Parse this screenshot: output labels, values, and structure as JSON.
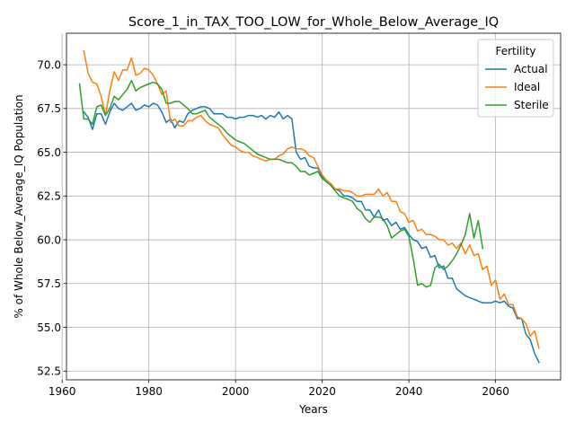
{
  "chart_data": {
    "type": "line",
    "title": "Score_1_in_TAX_TOO_LOW_for_Whole_Below_Average_IQ",
    "xlabel": "Years",
    "ylabel": "% of Whole Below_Average_IQ Population",
    "xlim": [
      1961,
      2075
    ],
    "ylim": [
      52.0,
      71.8
    ],
    "xticks": [
      1960,
      1980,
      2000,
      2020,
      2040,
      2060
    ],
    "yticks": [
      52.5,
      55.0,
      57.5,
      60.0,
      62.5,
      65.0,
      67.5,
      70.0
    ],
    "xtick_labels": [
      "1960",
      "1980",
      "2000",
      "2020",
      "2040",
      "2060"
    ],
    "ytick_labels": [
      "52.5",
      "55.0",
      "57.5",
      "60.0",
      "62.5",
      "65.0",
      "67.5",
      "70.0"
    ],
    "grid": true,
    "legend": {
      "title": "Fertility",
      "placement": "top-right"
    },
    "series": [
      {
        "name": "Actual",
        "color": "#1f77b4",
        "points": [
          [
            1965,
            67.3
          ],
          [
            1966,
            67.0
          ],
          [
            1967,
            66.3
          ],
          [
            1968,
            67.2
          ],
          [
            1969,
            67.2
          ],
          [
            1970,
            66.6
          ],
          [
            1971,
            67.3
          ],
          [
            1972,
            67.8
          ],
          [
            1973,
            67.5
          ],
          [
            1974,
            67.4
          ],
          [
            1975,
            67.6
          ],
          [
            1976,
            67.8
          ],
          [
            1977,
            67.4
          ],
          [
            1978,
            67.5
          ],
          [
            1979,
            67.7
          ],
          [
            1980,
            67.6
          ],
          [
            1981,
            67.8
          ],
          [
            1982,
            67.7
          ],
          [
            1983,
            67.3
          ],
          [
            1984,
            66.7
          ],
          [
            1985,
            66.9
          ],
          [
            1986,
            66.4
          ],
          [
            1987,
            66.8
          ],
          [
            1988,
            66.7
          ],
          [
            1989,
            67.2
          ],
          [
            1990,
            67.4
          ],
          [
            1991,
            67.5
          ],
          [
            1992,
            67.6
          ],
          [
            1993,
            67.6
          ],
          [
            1994,
            67.5
          ],
          [
            1995,
            67.2
          ],
          [
            1996,
            67.2
          ],
          [
            1997,
            67.2
          ],
          [
            1998,
            67.0
          ],
          [
            1999,
            67.0
          ],
          [
            2000,
            66.9
          ],
          [
            2001,
            67.0
          ],
          [
            2002,
            67.0
          ],
          [
            2003,
            67.1
          ],
          [
            2004,
            67.1
          ],
          [
            2005,
            67.0
          ],
          [
            2006,
            67.1
          ],
          [
            2007,
            66.9
          ],
          [
            2008,
            67.1
          ],
          [
            2009,
            67.0
          ],
          [
            2010,
            67.3
          ],
          [
            2011,
            66.9
          ],
          [
            2012,
            67.1
          ],
          [
            2013,
            66.9
          ],
          [
            2014,
            65.0
          ],
          [
            2015,
            64.6
          ],
          [
            2016,
            64.7
          ],
          [
            2017,
            64.2
          ],
          [
            2018,
            64.1
          ],
          [
            2019,
            64.1
          ],
          [
            2020,
            63.6
          ],
          [
            2021,
            63.4
          ],
          [
            2022,
            63.2
          ],
          [
            2023,
            62.9
          ],
          [
            2024,
            62.8
          ],
          [
            2025,
            62.5
          ],
          [
            2026,
            62.5
          ],
          [
            2027,
            62.4
          ],
          [
            2028,
            62.2
          ],
          [
            2029,
            62.2
          ],
          [
            2030,
            61.7
          ],
          [
            2031,
            61.7
          ],
          [
            2032,
            61.3
          ],
          [
            2033,
            61.7
          ],
          [
            2034,
            61.1
          ],
          [
            2035,
            61.2
          ],
          [
            2036,
            60.8
          ],
          [
            2037,
            61.0
          ],
          [
            2038,
            60.6
          ],
          [
            2039,
            60.7
          ],
          [
            2040,
            60.3
          ],
          [
            2041,
            60.0
          ],
          [
            2042,
            59.9
          ],
          [
            2043,
            59.5
          ],
          [
            2044,
            59.6
          ],
          [
            2045,
            59.0
          ],
          [
            2046,
            59.1
          ],
          [
            2047,
            58.4
          ],
          [
            2048,
            58.5
          ],
          [
            2049,
            57.8
          ],
          [
            2050,
            57.8
          ],
          [
            2051,
            57.2
          ],
          [
            2052,
            57.0
          ],
          [
            2053,
            56.8
          ],
          [
            2054,
            56.7
          ],
          [
            2055,
            56.6
          ],
          [
            2056,
            56.5
          ],
          [
            2057,
            56.4
          ],
          [
            2058,
            56.4
          ],
          [
            2059,
            56.4
          ],
          [
            2060,
            56.5
          ],
          [
            2061,
            56.4
          ],
          [
            2062,
            56.5
          ],
          [
            2063,
            56.2
          ],
          [
            2064,
            56.1
          ],
          [
            2065,
            55.5
          ],
          [
            2066,
            55.5
          ],
          [
            2067,
            54.6
          ],
          [
            2068,
            54.3
          ],
          [
            2069,
            53.5
          ],
          [
            2070,
            53.0
          ]
        ]
      },
      {
        "name": "Ideal",
        "color": "#ff7f0e",
        "points": [
          [
            1965,
            70.8
          ],
          [
            1966,
            69.5
          ],
          [
            1967,
            69.0
          ],
          [
            1968,
            68.9
          ],
          [
            1969,
            68.2
          ],
          [
            1970,
            67.1
          ],
          [
            1971,
            68.5
          ],
          [
            1972,
            69.6
          ],
          [
            1973,
            69.1
          ],
          [
            1974,
            69.7
          ],
          [
            1975,
            69.7
          ],
          [
            1976,
            70.4
          ],
          [
            1977,
            69.4
          ],
          [
            1978,
            69.5
          ],
          [
            1979,
            69.8
          ],
          [
            1980,
            69.7
          ],
          [
            1981,
            69.4
          ],
          [
            1982,
            68.9
          ],
          [
            1983,
            68.3
          ],
          [
            1984,
            68.5
          ],
          [
            1985,
            66.7
          ],
          [
            1986,
            66.9
          ],
          [
            1987,
            66.5
          ],
          [
            1988,
            66.5
          ],
          [
            1989,
            66.8
          ],
          [
            1990,
            66.8
          ],
          [
            1991,
            67.0
          ],
          [
            1992,
            67.1
          ],
          [
            1993,
            66.8
          ],
          [
            1994,
            66.6
          ],
          [
            1995,
            66.5
          ],
          [
            1996,
            66.4
          ],
          [
            1997,
            66.0
          ],
          [
            1998,
            65.7
          ],
          [
            1999,
            65.4
          ],
          [
            2000,
            65.3
          ],
          [
            2001,
            65.1
          ],
          [
            2002,
            65.0
          ],
          [
            2003,
            65.0
          ],
          [
            2004,
            64.8
          ],
          [
            2005,
            64.7
          ],
          [
            2006,
            64.6
          ],
          [
            2007,
            64.5
          ],
          [
            2008,
            64.6
          ],
          [
            2009,
            64.6
          ],
          [
            2010,
            64.8
          ],
          [
            2011,
            64.9
          ],
          [
            2012,
            65.2
          ],
          [
            2013,
            65.3
          ],
          [
            2014,
            65.2
          ],
          [
            2015,
            65.2
          ],
          [
            2016,
            65.1
          ],
          [
            2017,
            64.8
          ],
          [
            2018,
            64.7
          ],
          [
            2019,
            64.2
          ],
          [
            2020,
            63.7
          ],
          [
            2021,
            63.4
          ],
          [
            2022,
            63.2
          ],
          [
            2023,
            62.9
          ],
          [
            2024,
            62.9
          ],
          [
            2025,
            62.8
          ],
          [
            2026,
            62.8
          ],
          [
            2027,
            62.7
          ],
          [
            2028,
            62.5
          ],
          [
            2029,
            62.5
          ],
          [
            2030,
            62.6
          ],
          [
            2031,
            62.6
          ],
          [
            2032,
            62.6
          ],
          [
            2033,
            62.9
          ],
          [
            2034,
            62.5
          ],
          [
            2035,
            62.7
          ],
          [
            2036,
            62.2
          ],
          [
            2037,
            62.2
          ],
          [
            2038,
            61.6
          ],
          [
            2039,
            61.5
          ],
          [
            2040,
            61.0
          ],
          [
            2041,
            61.1
          ],
          [
            2042,
            60.5
          ],
          [
            2043,
            60.6
          ],
          [
            2044,
            60.3
          ],
          [
            2045,
            60.3
          ],
          [
            2046,
            60.2
          ],
          [
            2047,
            60.0
          ],
          [
            2048,
            60.0
          ],
          [
            2049,
            59.7
          ],
          [
            2050,
            59.8
          ],
          [
            2051,
            59.5
          ],
          [
            2052,
            59.8
          ],
          [
            2053,
            59.2
          ],
          [
            2054,
            59.7
          ],
          [
            2055,
            59.1
          ],
          [
            2056,
            59.2
          ],
          [
            2057,
            58.3
          ],
          [
            2058,
            58.5
          ],
          [
            2059,
            57.4
          ],
          [
            2060,
            57.7
          ],
          [
            2061,
            56.6
          ],
          [
            2062,
            56.9
          ],
          [
            2063,
            56.3
          ],
          [
            2064,
            56.3
          ],
          [
            2065,
            55.6
          ],
          [
            2066,
            55.5
          ],
          [
            2067,
            55.2
          ],
          [
            2068,
            54.5
          ],
          [
            2069,
            54.8
          ],
          [
            2070,
            53.8
          ]
        ]
      },
      {
        "name": "Sterile",
        "color": "#2ca02c",
        "points": [
          [
            1964,
            68.9
          ],
          [
            1965,
            66.9
          ],
          [
            1966,
            66.9
          ],
          [
            1967,
            66.6
          ],
          [
            1968,
            67.6
          ],
          [
            1969,
            67.7
          ],
          [
            1970,
            67.1
          ],
          [
            1971,
            67.5
          ],
          [
            1972,
            68.2
          ],
          [
            1973,
            68.0
          ],
          [
            1974,
            68.3
          ],
          [
            1975,
            68.6
          ],
          [
            1976,
            69.1
          ],
          [
            1977,
            68.5
          ],
          [
            1978,
            68.7
          ],
          [
            1979,
            68.8
          ],
          [
            1980,
            68.9
          ],
          [
            1981,
            69.0
          ],
          [
            1982,
            68.9
          ],
          [
            1983,
            68.6
          ],
          [
            1984,
            67.8
          ],
          [
            1985,
            67.8
          ],
          [
            1986,
            67.9
          ],
          [
            1987,
            67.9
          ],
          [
            1988,
            67.7
          ],
          [
            1989,
            67.5
          ],
          [
            1990,
            67.2
          ],
          [
            1991,
            67.2
          ],
          [
            1992,
            67.3
          ],
          [
            1993,
            67.4
          ],
          [
            1994,
            67.0
          ],
          [
            1995,
            66.8
          ],
          [
            1996,
            66.6
          ],
          [
            1997,
            66.4
          ],
          [
            1998,
            66.1
          ],
          [
            1999,
            65.9
          ],
          [
            2000,
            65.7
          ],
          [
            2001,
            65.6
          ],
          [
            2002,
            65.5
          ],
          [
            2003,
            65.3
          ],
          [
            2004,
            65.1
          ],
          [
            2005,
            64.9
          ],
          [
            2006,
            64.8
          ],
          [
            2007,
            64.7
          ],
          [
            2008,
            64.6
          ],
          [
            2009,
            64.6
          ],
          [
            2010,
            64.6
          ],
          [
            2011,
            64.5
          ],
          [
            2012,
            64.4
          ],
          [
            2013,
            64.4
          ],
          [
            2014,
            64.2
          ],
          [
            2015,
            63.9
          ],
          [
            2016,
            63.9
          ],
          [
            2017,
            63.7
          ],
          [
            2018,
            63.8
          ],
          [
            2019,
            63.9
          ],
          [
            2020,
            63.5
          ],
          [
            2021,
            63.3
          ],
          [
            2022,
            63.1
          ],
          [
            2023,
            62.8
          ],
          [
            2024,
            62.5
          ],
          [
            2025,
            62.4
          ],
          [
            2026,
            62.3
          ],
          [
            2027,
            62.2
          ],
          [
            2028,
            61.8
          ],
          [
            2029,
            61.6
          ],
          [
            2030,
            61.2
          ],
          [
            2031,
            61.0
          ],
          [
            2032,
            61.3
          ],
          [
            2033,
            61.3
          ],
          [
            2034,
            61.2
          ],
          [
            2035,
            60.8
          ],
          [
            2036,
            60.1
          ],
          [
            2037,
            60.3
          ],
          [
            2038,
            60.5
          ],
          [
            2039,
            60.6
          ],
          [
            2040,
            60.2
          ],
          [
            2041,
            58.9
          ],
          [
            2042,
            57.4
          ],
          [
            2043,
            57.5
          ],
          [
            2044,
            57.3
          ],
          [
            2045,
            57.4
          ],
          [
            2046,
            58.4
          ],
          [
            2047,
            58.6
          ],
          [
            2048,
            58.3
          ],
          [
            2049,
            58.5
          ],
          [
            2050,
            58.8
          ],
          [
            2051,
            59.2
          ],
          [
            2052,
            59.7
          ],
          [
            2053,
            60.3
          ],
          [
            2054,
            61.5
          ],
          [
            2055,
            60.1
          ],
          [
            2056,
            61.1
          ],
          [
            2057,
            59.5
          ]
        ]
      }
    ]
  }
}
